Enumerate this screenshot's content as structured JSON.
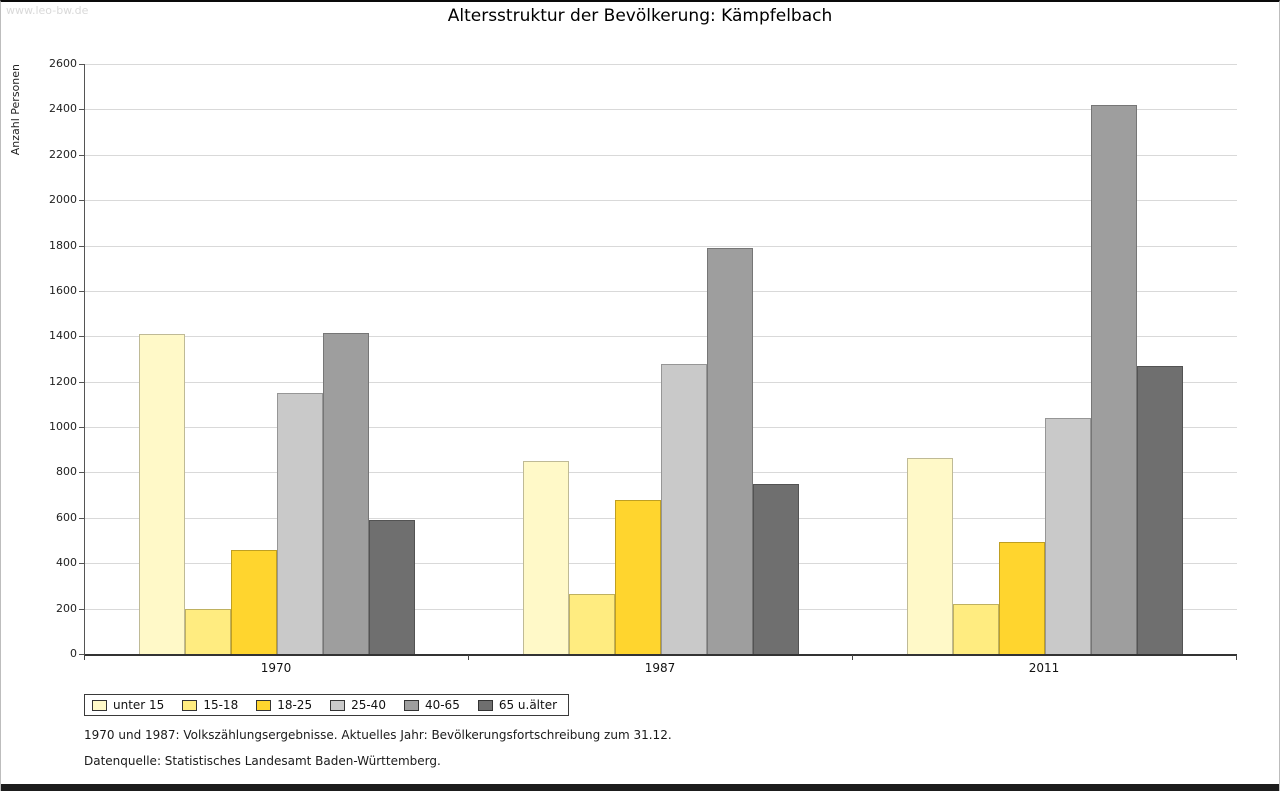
{
  "watermark": "www.leo-bw.de",
  "title": "Altersstruktur der Bevölkerung: Kämpfelbach",
  "footnotes": [
    "1970 und 1987: Volkszählungsergebnisse. Aktuelles Jahr: Bevölkerungsfortschreibung zum 31.12.",
    "Datenquelle: Statistisches Landesamt Baden-Württemberg."
  ],
  "chart_data": {
    "type": "bar",
    "title": "Altersstruktur der Bevölkerung: Kämpfelbach",
    "xlabel": "",
    "ylabel": "Anzahl Personen",
    "categories": [
      "1970",
      "1987",
      "2011"
    ],
    "series": [
      {
        "name": "unter 15",
        "color": "#FFF9C8",
        "values": [
          1410,
          850,
          865
        ]
      },
      {
        "name": "15-18",
        "color": "#FFEC80",
        "values": [
          200,
          265,
          220
        ]
      },
      {
        "name": "18-25",
        "color": "#FFD52E",
        "values": [
          460,
          680,
          495
        ]
      },
      {
        "name": "25-40",
        "color": "#C9C9C9",
        "values": [
          1150,
          1280,
          1040
        ]
      },
      {
        "name": "40-65",
        "color": "#9E9E9E",
        "values": [
          1415,
          1790,
          2420
        ]
      },
      {
        "name": "65 u.älter",
        "color": "#6F6F6F",
        "values": [
          590,
          750,
          1270
        ]
      }
    ],
    "ylim": [
      0,
      2600
    ],
    "ytick_step": 200,
    "grid": true,
    "legend_position": "bottom-left"
  }
}
